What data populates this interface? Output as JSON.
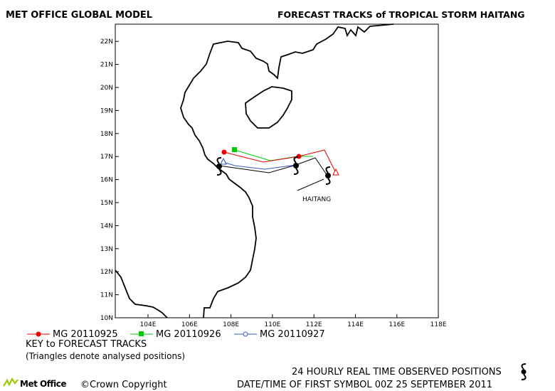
{
  "header": {
    "left_title": "MET OFFICE GLOBAL MODEL",
    "right_title": "FORECAST TRACKS of TROPICAL STORM HAITANG"
  },
  "map": {
    "lon_ticks": [
      "104E",
      "106E",
      "108E",
      "110E",
      "112E",
      "114E",
      "116E",
      "118E"
    ],
    "lat_ticks": [
      "10N",
      "11N",
      "12N",
      "13N",
      "14N",
      "15N",
      "16N",
      "17N",
      "18N",
      "19N",
      "20N",
      "21N",
      "22N"
    ],
    "storm_label": "HAITANG",
    "colors": {
      "mg_20110925": "#ee0000",
      "mg_20110926": "#00cc00",
      "mg_20110927": "#3355cc",
      "observed": "#000000"
    }
  },
  "legend": {
    "items": [
      {
        "label": "MG 20110925",
        "color": "#ee0000",
        "marker": "filled-circle"
      },
      {
        "label": "MG 20110926",
        "color": "#00cc00",
        "marker": "filled-square"
      },
      {
        "label": "MG 20110927",
        "color": "#3355cc",
        "marker": "open-circle"
      }
    ],
    "key_title": "KEY to FORECAST TRACKS",
    "key_note": "(Triangles denote analysed positions)"
  },
  "footer": {
    "observed_label": "24 HOURLY REAL TIME OBSERVED POSITIONS",
    "date_label": "DATE/TIME OF FIRST SYMBOL 00Z 25 SEPTEMBER 2011",
    "logo_text": "Met Office",
    "copyright": "©Crown Copyright",
    "storm_symbol_icon": "tropical-storm-icon"
  }
}
